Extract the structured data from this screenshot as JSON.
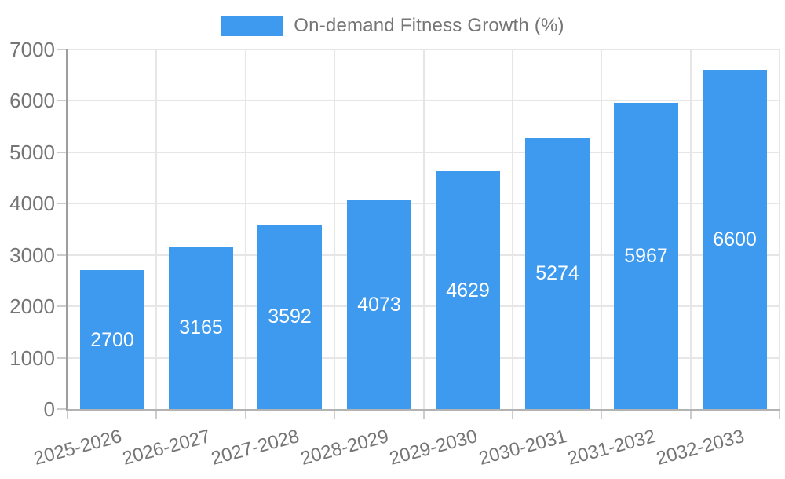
{
  "legend": {
    "label": "On-demand Fitness Growth (%)"
  },
  "chart_data": {
    "type": "bar",
    "title": "On-demand Fitness Growth (%)",
    "series_name": "On-demand Fitness Growth (%)",
    "categories": [
      "2025-2026",
      "2026-2027",
      "2027-2028",
      "2028-2029",
      "2029-2030",
      "2030-2031",
      "2031-2032",
      "2032-2033"
    ],
    "values": [
      2700,
      3165,
      3592,
      4073,
      4629,
      5274,
      5967,
      6600
    ],
    "xlabel": "",
    "ylabel": "",
    "ylim": [
      0,
      7000
    ],
    "yticks": [
      0,
      1000,
      2000,
      3000,
      4000,
      5000,
      6000,
      7000
    ],
    "grid": true,
    "legend_position": "top-center",
    "x_label_rotation_deg": -15,
    "value_labels_inside_bars": true,
    "colors": {
      "bar": "#3D9AEE",
      "value_label": "#FFFFFF",
      "axis_text": "#757575",
      "background": "#FFFFFF"
    }
  }
}
